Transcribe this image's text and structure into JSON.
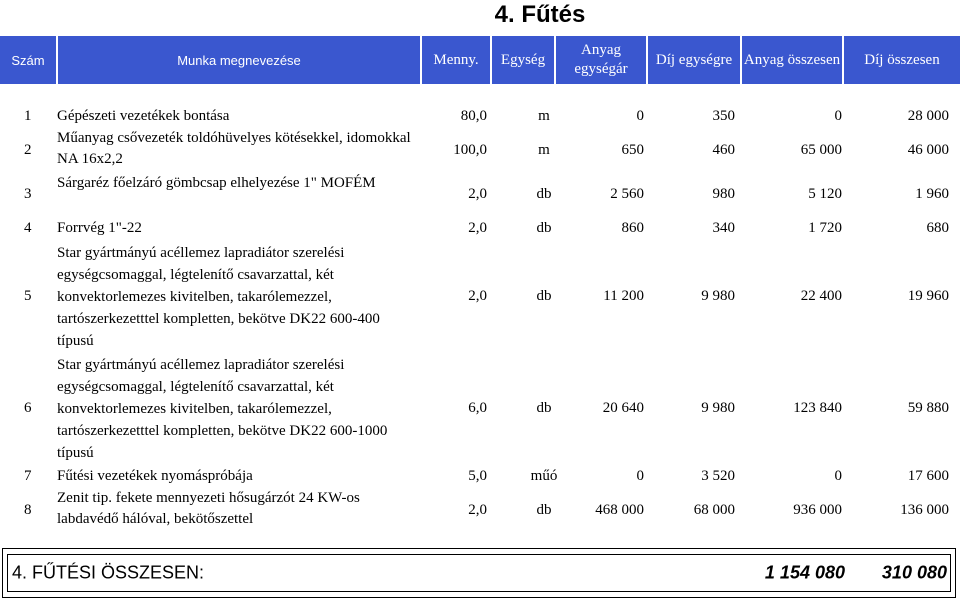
{
  "title": "4. Fűtés",
  "header": {
    "szam": "Szám",
    "munka": "Munka megnevezése",
    "menny": "Menny.",
    "egyseg": "Egység",
    "anyag_egysegar": "Anyag egységár",
    "dij_egysegre": "Díj egységre",
    "anyag_osszesen": "Anyag összesen",
    "dij_osszesen": "Díj összesen"
  },
  "rows": [
    {
      "num": "1",
      "desc": "Gépészeti vezetékek bontása",
      "menny": "80,0",
      "egyseg": "m",
      "anyag_egysegar": "0",
      "dij_egysegre": "350",
      "anyag_osszesen": "0",
      "dij_osszesen": "28 000"
    },
    {
      "num": "2",
      "desc": "Műanyag csővezeték toldóhüvelyes kötésekkel, idomokkal NA 16x2,2",
      "menny": "100,0",
      "egyseg": "m",
      "anyag_egysegar": "650",
      "dij_egysegre": "460",
      "anyag_osszesen": "65 000",
      "dij_osszesen": "46 000"
    },
    {
      "num": "3",
      "desc": "Sárgaréz főelzáró gömbcsap elhelyezése 1\" MOFÉM",
      "menny": "2,0",
      "egyseg": "db",
      "anyag_egysegar": "2 560",
      "dij_egysegre": "980",
      "anyag_osszesen": "5 120",
      "dij_osszesen": "1 960"
    },
    {
      "num": "4",
      "desc": "Forrvég 1\"-22",
      "menny": "2,0",
      "egyseg": "db",
      "anyag_egysegar": "860",
      "dij_egysegre": "340",
      "anyag_osszesen": "1 720",
      "dij_osszesen": "680"
    },
    {
      "num": "5",
      "desc": "Star gyártmányú acéllemez lapradiátor szerelési egységcsomaggal, légtelenítő csavarzattal, két konvektorlemezes kivitelben, takarólemezzel, tartószerkezetttel kompletten, bekötve DK22 600-400 típusú",
      "menny": "2,0",
      "egyseg": "db",
      "anyag_egysegar": "11 200",
      "dij_egysegre": "9 980",
      "anyag_osszesen": "22 400",
      "dij_osszesen": "19 960"
    },
    {
      "num": "6",
      "desc": "Star gyártmányú acéllemez lapradiátor szerelési egységcsomaggal, légtelenítő csavarzattal, két konvektorlemezes kivitelben, takarólemezzel, tartószerkezetttel kompletten, bekötve DK22 600-1000 típusú",
      "menny": "6,0",
      "egyseg": "db",
      "anyag_egysegar": "20 640",
      "dij_egysegre": "9 980",
      "anyag_osszesen": "123 840",
      "dij_osszesen": "59 880"
    },
    {
      "num": "7",
      "desc": "Fűtési vezetékek nyomáspróbája",
      "menny": "5,0",
      "egyseg": "műó",
      "anyag_egysegar": "0",
      "dij_egysegre": "3 520",
      "anyag_osszesen": "0",
      "dij_osszesen": "17 600"
    },
    {
      "num": "8",
      "desc": "Zenit tip. fekete mennyezeti hősugárzót 24 KW-os labdavédő hálóval, bekötőszettel",
      "menny": "2,0",
      "egyseg": "db",
      "anyag_egysegar": "468 000",
      "dij_egysegre": "68 000",
      "anyag_osszesen": "936 000",
      "dij_osszesen": "136 000"
    }
  ],
  "total": {
    "label": "4. FŰTÉSI ÖSSZESEN:",
    "anyag": "1 154 080",
    "dij": "310 080"
  }
}
